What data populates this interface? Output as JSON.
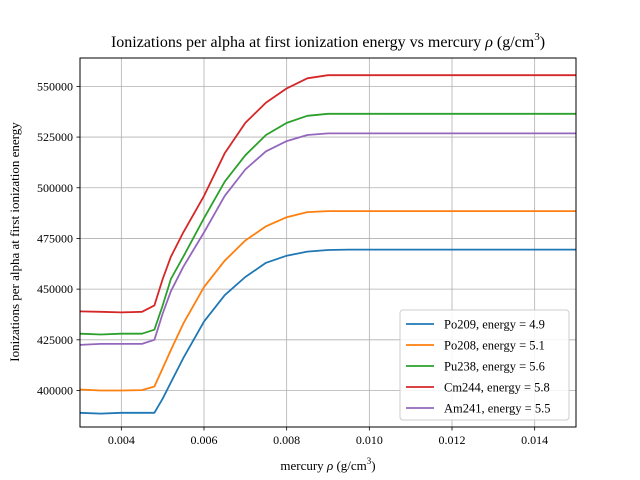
{
  "chart_data": {
    "type": "line",
    "title": "Ionizations per alpha at first ionization energy vs mercury",
    "title_symbol": "ρ",
    "title_unit": "(g/cm",
    "title_sup": "3",
    "title_close": ")",
    "xlabel_prefix": "mercury",
    "xlabel_symbol": "ρ",
    "xlabel_unit": "(g/cm",
    "xlabel_sup": "3",
    "xlabel_close": ")",
    "ylabel": "Ionizations per alpha at first ionization energy",
    "xlim": [
      0.003,
      0.015
    ],
    "ylim": [
      382000,
      564000
    ],
    "xticks": [
      0.004,
      0.006,
      0.008,
      0.01,
      0.012,
      0.014
    ],
    "xtick_labels": [
      "0.004",
      "0.006",
      "0.008",
      "0.010",
      "0.012",
      "0.014"
    ],
    "yticks": [
      400000,
      425000,
      450000,
      475000,
      500000,
      525000,
      550000
    ],
    "ytick_labels": [
      "400000",
      "425000",
      "450000",
      "475000",
      "500000",
      "525000",
      "550000"
    ],
    "grid": true,
    "legend_position": "lower-right",
    "x": [
      0.003,
      0.0035,
      0.004,
      0.0045,
      0.0048,
      0.005,
      0.0052,
      0.0055,
      0.006,
      0.0065,
      0.007,
      0.0075,
      0.008,
      0.0085,
      0.009,
      0.0095,
      0.01,
      0.011,
      0.012,
      0.013,
      0.014,
      0.015
    ],
    "series": [
      {
        "name": "Po209, energy = 4.9",
        "color": "#1f77b4",
        "values": [
          389000,
          388600,
          389000,
          389000,
          389000,
          396000,
          404000,
          416000,
          434000,
          447000,
          456000,
          463000,
          466500,
          468500,
          469300,
          469500,
          469500,
          469500,
          469500,
          469500,
          469500,
          469500
        ]
      },
      {
        "name": "Po208, energy = 5.1",
        "color": "#ff7f0e",
        "values": [
          400500,
          400000,
          400000,
          400200,
          402000,
          411000,
          420000,
          433000,
          451000,
          464000,
          474000,
          481000,
          485500,
          488000,
          488500,
          488500,
          488500,
          488500,
          488500,
          488500,
          488500,
          488500
        ]
      },
      {
        "name": "Pu238, energy = 5.6",
        "color": "#2ca02c",
        "values": [
          428000,
          427600,
          428000,
          428000,
          430000,
          442000,
          455000,
          466000,
          485000,
          503000,
          516000,
          526000,
          532000,
          535500,
          536500,
          536500,
          536500,
          536500,
          536500,
          536500,
          536500,
          536500
        ]
      },
      {
        "name": "Cm244, energy = 5.8",
        "color": "#d62728",
        "values": [
          439000,
          438800,
          438500,
          438800,
          442000,
          455000,
          466000,
          478000,
          496000,
          517000,
          532000,
          542000,
          549000,
          554000,
          555500,
          555500,
          555500,
          555500,
          555500,
          555500,
          555500,
          555500
        ]
      },
      {
        "name": "Am241, energy = 5.5",
        "color": "#9467bd",
        "values": [
          422500,
          423000,
          423000,
          423000,
          425000,
          438000,
          449000,
          461000,
          478000,
          496000,
          509000,
          518000,
          523000,
          526000,
          526800,
          526800,
          526800,
          526800,
          526800,
          526800,
          526800,
          526800
        ]
      }
    ]
  }
}
